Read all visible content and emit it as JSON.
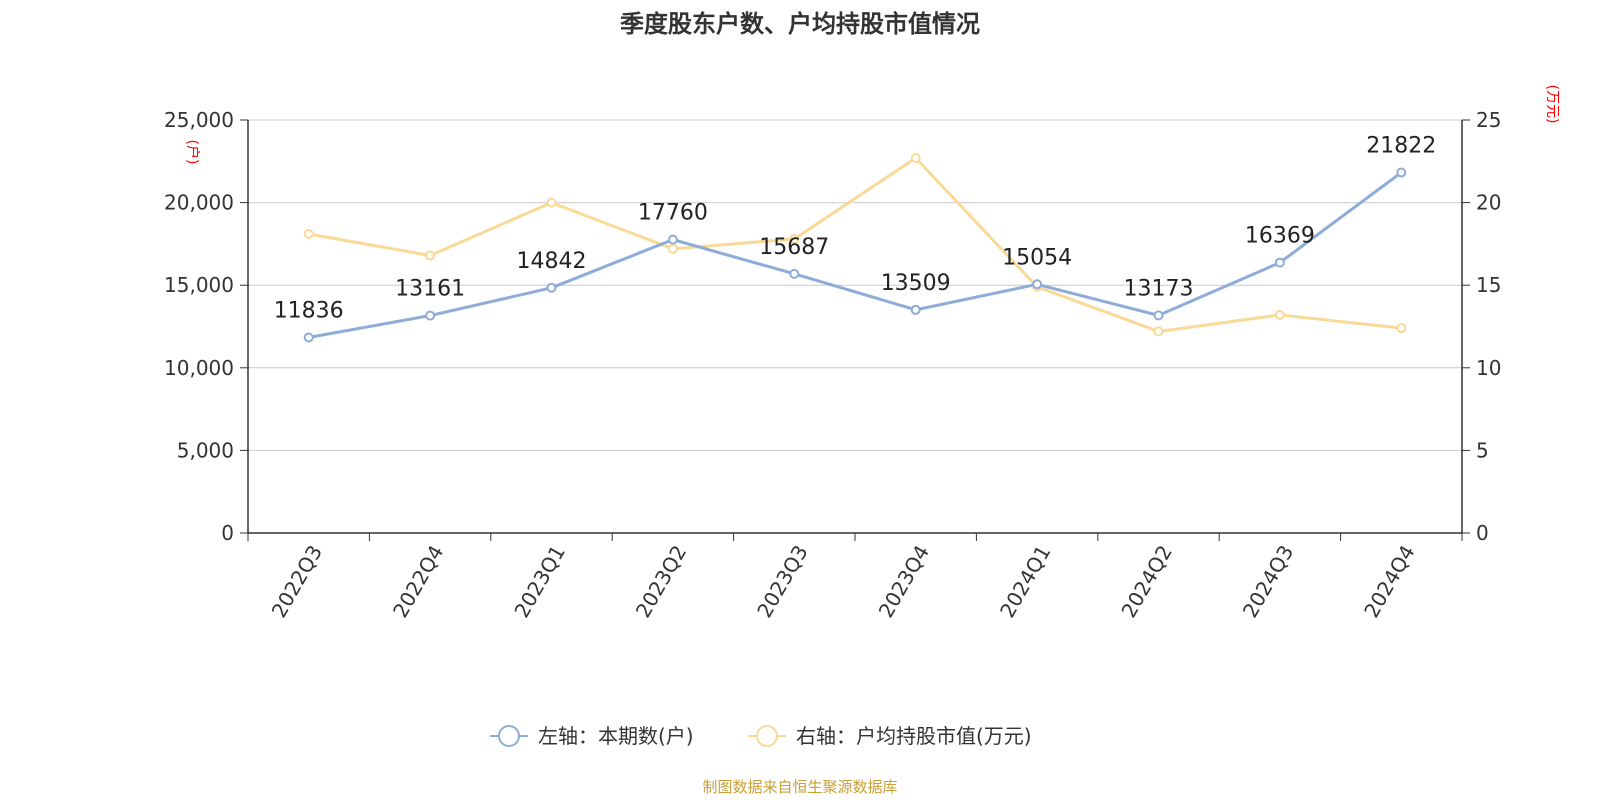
{
  "chart_data": {
    "type": "line",
    "title": "季度股东户数、户均持股市值情况",
    "categories": [
      "2022Q3",
      "2022Q4",
      "2023Q1",
      "2023Q2",
      "2023Q3",
      "2023Q4",
      "2024Q1",
      "2024Q2",
      "2024Q3",
      "2024Q4"
    ],
    "left_axis": {
      "unit": "(户)",
      "ylim": [
        0,
        25000
      ],
      "ticks": [
        0,
        5000,
        10000,
        15000,
        20000,
        25000
      ],
      "tick_labels": [
        "0",
        "5,000",
        "10,000",
        "15,000",
        "20,000",
        "25,000"
      ]
    },
    "right_axis": {
      "unit": "(万元)",
      "ylim": [
        0,
        25
      ],
      "ticks": [
        0,
        5,
        10,
        15,
        20,
        25
      ],
      "tick_labels": [
        "0",
        "5",
        "10",
        "15",
        "20",
        "25"
      ]
    },
    "series": [
      {
        "name": "左轴：本期数(户)",
        "axis": "left",
        "color": "#8eacd8",
        "values": [
          11836,
          13161,
          14842,
          17760,
          15687,
          13509,
          15054,
          13173,
          16369,
          21822
        ],
        "labels": [
          "11836",
          "13161",
          "14842",
          "17760",
          "15687",
          "13509",
          "15054",
          "13173",
          "16369",
          "21822"
        ]
      },
      {
        "name": "右轴：户均持股市值(万元)",
        "axis": "right",
        "color": "#fad997",
        "values": [
          18.1,
          16.8,
          20.0,
          17.2,
          17.8,
          22.7,
          14.9,
          12.2,
          13.2,
          12.4
        ]
      }
    ],
    "grid": true,
    "legend_position": "bottom-center",
    "source": "制图数据来自恒生聚源数据库"
  }
}
